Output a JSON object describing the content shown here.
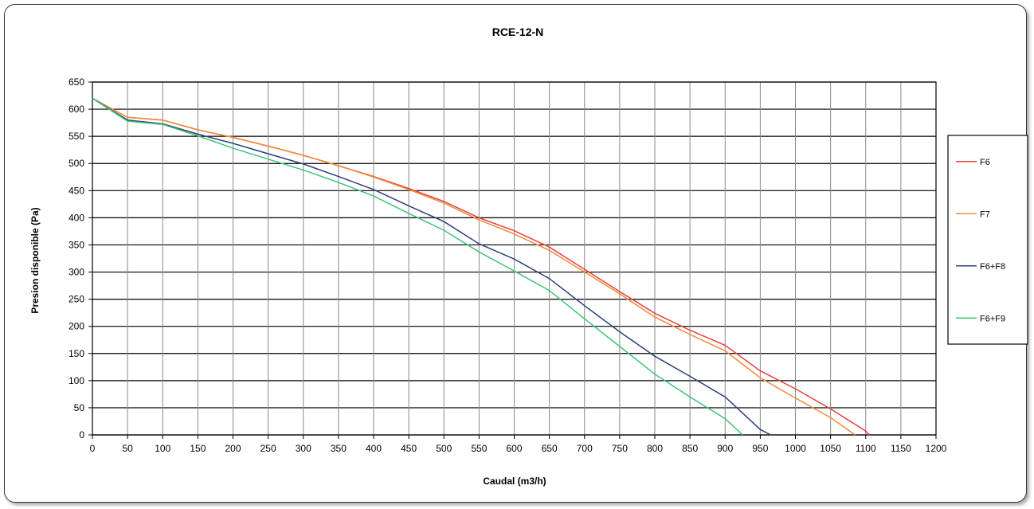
{
  "chart_data": {
    "type": "line",
    "title": "RCE-12-N",
    "xlabel": "Caudal (m3/h)",
    "ylabel": "Presion disponible (Pa)",
    "xlim": [
      0,
      1200
    ],
    "ylim": [
      0,
      650
    ],
    "x_ticks": [
      0,
      50,
      100,
      150,
      200,
      250,
      300,
      350,
      400,
      450,
      500,
      550,
      600,
      650,
      700,
      750,
      800,
      850,
      900,
      950,
      1000,
      1050,
      1100,
      1150,
      1200
    ],
    "y_ticks": [
      0,
      50,
      100,
      150,
      200,
      250,
      300,
      350,
      400,
      450,
      500,
      550,
      600,
      650
    ],
    "x_tick_labels": [
      "0",
      "50",
      "100",
      "150",
      "200",
      "250",
      "300",
      "350",
      "400",
      "450",
      "500",
      "550",
      "600",
      "650",
      "700",
      "750",
      "800",
      "850",
      "900",
      "950",
      "1000",
      "1050",
      "1100",
      "1150",
      "1200"
    ],
    "y_tick_labels": [
      "0",
      "50",
      "100",
      "150",
      "200",
      "250",
      "300",
      "350",
      "400",
      "450",
      "500",
      "550",
      "600",
      "650"
    ],
    "grid": true,
    "legend_position": "right",
    "series": [
      {
        "name": "F6",
        "color": "#e8413c",
        "points": [
          [
            0,
            620
          ],
          [
            50,
            585
          ],
          [
            100,
            580
          ],
          [
            150,
            562
          ],
          [
            200,
            548
          ],
          [
            250,
            532
          ],
          [
            300,
            515
          ],
          [
            350,
            496
          ],
          [
            400,
            476
          ],
          [
            450,
            454
          ],
          [
            500,
            430
          ],
          [
            550,
            400
          ],
          [
            600,
            376
          ],
          [
            650,
            346
          ],
          [
            700,
            305
          ],
          [
            750,
            264
          ],
          [
            800,
            224
          ],
          [
            850,
            193
          ],
          [
            900,
            165
          ],
          [
            950,
            118
          ],
          [
            1000,
            85
          ],
          [
            1050,
            48
          ],
          [
            1100,
            7
          ],
          [
            1105,
            0
          ]
        ]
      },
      {
        "name": "F7",
        "color": "#f28c3c",
        "points": [
          [
            0,
            620
          ],
          [
            50,
            585
          ],
          [
            100,
            580
          ],
          [
            150,
            562
          ],
          [
            200,
            548
          ],
          [
            250,
            532
          ],
          [
            300,
            515
          ],
          [
            350,
            496
          ],
          [
            400,
            475
          ],
          [
            450,
            452
          ],
          [
            500,
            427
          ],
          [
            550,
            396
          ],
          [
            600,
            370
          ],
          [
            650,
            340
          ],
          [
            700,
            300
          ],
          [
            750,
            260
          ],
          [
            800,
            217
          ],
          [
            850,
            185
          ],
          [
            900,
            155
          ],
          [
            950,
            105
          ],
          [
            1000,
            68
          ],
          [
            1050,
            32
          ],
          [
            1085,
            0
          ]
        ]
      },
      {
        "name": "F6+F8",
        "color": "#2d3f7b",
        "points": [
          [
            0,
            620
          ],
          [
            50,
            580
          ],
          [
            100,
            573
          ],
          [
            150,
            554
          ],
          [
            200,
            537
          ],
          [
            250,
            518
          ],
          [
            300,
            499
          ],
          [
            350,
            476
          ],
          [
            400,
            452
          ],
          [
            450,
            422
          ],
          [
            500,
            393
          ],
          [
            550,
            352
          ],
          [
            600,
            324
          ],
          [
            650,
            288
          ],
          [
            700,
            238
          ],
          [
            750,
            190
          ],
          [
            800,
            145
          ],
          [
            850,
            108
          ],
          [
            900,
            70
          ],
          [
            950,
            10
          ],
          [
            965,
            0
          ]
        ]
      },
      {
        "name": "F6+F9",
        "color": "#3cc47a",
        "points": [
          [
            0,
            620
          ],
          [
            50,
            578
          ],
          [
            100,
            572
          ],
          [
            150,
            551
          ],
          [
            200,
            528
          ],
          [
            250,
            508
          ],
          [
            300,
            488
          ],
          [
            350,
            465
          ],
          [
            400,
            440
          ],
          [
            450,
            408
          ],
          [
            500,
            377
          ],
          [
            550,
            337
          ],
          [
            600,
            302
          ],
          [
            650,
            266
          ],
          [
            700,
            214
          ],
          [
            750,
            163
          ],
          [
            800,
            112
          ],
          [
            850,
            70
          ],
          [
            900,
            30
          ],
          [
            925,
            0
          ]
        ]
      }
    ]
  }
}
